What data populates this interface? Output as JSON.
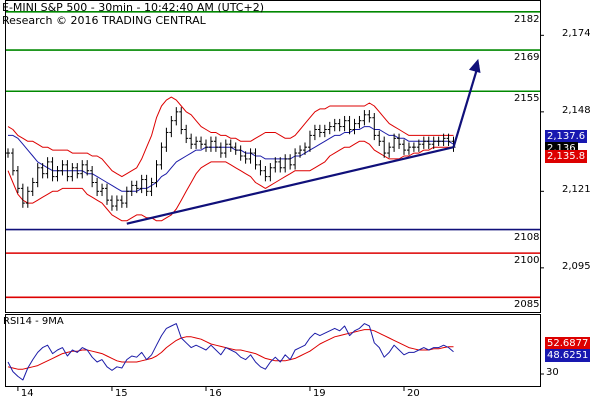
{
  "header": {
    "line1": "E-MINI S&P 500 - 30min - 10:42:40 AM (UTC+2)",
    "line2": "Research © 2016 TRADING CENTRAL"
  },
  "colors": {
    "price": "#000000",
    "bollinger": "#dd0000",
    "moving_average": "#1c1ca8",
    "trendline": "#10107a",
    "resistance": "#008800",
    "support_red": "#dd0000",
    "support_blue": "#10107a",
    "badge_blue": "#1818b0",
    "badge_red": "#dd0000",
    "badge_black": "#000000"
  },
  "chart_data": [
    {
      "type": "line",
      "title": "E-MINI S&P 500 - 30min",
      "ylim": [
        2080,
        2186
      ],
      "y_ticks": [
        {
          "value": 2174,
          "label": "2,174"
        },
        {
          "value": 2148,
          "label": "2,148"
        },
        {
          "value": 2121,
          "label": "2,121"
        },
        {
          "value": 2095,
          "label": "2,095"
        }
      ],
      "x_ticks": [
        {
          "index": 2,
          "label": "14"
        },
        {
          "index": 21,
          "label": "15"
        },
        {
          "index": 40,
          "label": "16"
        },
        {
          "index": 61,
          "label": "19"
        },
        {
          "index": 80,
          "label": "20"
        }
      ],
      "price": [
        2134,
        2128,
        2122,
        2117,
        2121,
        2124,
        2129,
        2127,
        2131,
        2126,
        2128,
        2130,
        2126,
        2129,
        2127,
        2130,
        2128,
        2124,
        2121,
        2122,
        2118,
        2116,
        2118,
        2117,
        2121,
        2123,
        2122,
        2125,
        2121,
        2124,
        2130,
        2136,
        2141,
        2145,
        2148,
        2142,
        2139,
        2137,
        2138,
        2137,
        2136,
        2138,
        2136,
        2134,
        2137,
        2136,
        2135,
        2133,
        2132,
        2134,
        2130,
        2128,
        2126,
        2129,
        2131,
        2129,
        2132,
        2130,
        2134,
        2135,
        2136,
        2140,
        2142,
        2141,
        2142,
        2143,
        2144,
        2143,
        2145,
        2142,
        2144,
        2145,
        2147,
        2146,
        2140,
        2138,
        2134,
        2136,
        2139,
        2137,
        2135,
        2136,
        2136,
        2137,
        2138,
        2137,
        2138,
        2138,
        2139,
        2138,
        2136
      ],
      "moving_average": [
        2140,
        2140,
        2139,
        2137,
        2135,
        2133,
        2131,
        2130,
        2129,
        2128,
        2128,
        2128,
        2128,
        2128,
        2128,
        2128,
        2127,
        2127,
        2126,
        2125,
        2124,
        2123,
        2122,
        2121,
        2121,
        2121,
        2121,
        2122,
        2122,
        2123,
        2124,
        2126,
        2127,
        2129,
        2131,
        2132,
        2133,
        2134,
        2135,
        2135,
        2136,
        2136,
        2136,
        2136,
        2136,
        2136,
        2135,
        2135,
        2134,
        2134,
        2133,
        2133,
        2132,
        2132,
        2132,
        2132,
        2132,
        2132,
        2133,
        2133,
        2134,
        2135,
        2136,
        2137,
        2138,
        2139,
        2140,
        2140,
        2141,
        2141,
        2142,
        2142,
        2143,
        2143,
        2142,
        2142,
        2141,
        2140,
        2140,
        2139,
        2139,
        2138,
        2138,
        2138,
        2138,
        2138,
        2138,
        2138,
        2138,
        2138,
        2137
      ],
      "bollinger_upper": [
        2143,
        2142,
        2140,
        2139,
        2138,
        2138,
        2137,
        2136,
        2136,
        2135,
        2135,
        2135,
        2135,
        2134,
        2134,
        2134,
        2134,
        2133,
        2133,
        2132,
        2130,
        2128,
        2127,
        2126,
        2127,
        2128,
        2129,
        2132,
        2136,
        2140,
        2146,
        2150,
        2152,
        2153,
        2152,
        2150,
        2148,
        2147,
        2145,
        2143,
        2142,
        2141,
        2141,
        2140,
        2140,
        2139,
        2139,
        2138,
        2138,
        2138,
        2139,
        2140,
        2141,
        2141,
        2141,
        2140,
        2139,
        2139,
        2140,
        2142,
        2144,
        2146,
        2148,
        2149,
        2149,
        2150,
        2150,
        2150,
        2150,
        2150,
        2150,
        2150,
        2150,
        2151,
        2150,
        2148,
        2146,
        2144,
        2143,
        2142,
        2141,
        2140,
        2140,
        2140,
        2140,
        2140,
        2140,
        2140,
        2140,
        2140,
        2140
      ],
      "bollinger_lower": [
        2128,
        2124,
        2120,
        2118,
        2117,
        2117,
        2118,
        2119,
        2120,
        2121,
        2121,
        2122,
        2122,
        2122,
        2122,
        2122,
        2120,
        2119,
        2118,
        2117,
        2115,
        2113,
        2112,
        2111,
        2111,
        2112,
        2113,
        2113,
        2112,
        2112,
        2111,
        2111,
        2112,
        2113,
        2115,
        2118,
        2121,
        2124,
        2127,
        2129,
        2130,
        2131,
        2131,
        2131,
        2131,
        2130,
        2129,
        2128,
        2127,
        2126,
        2124,
        2123,
        2122,
        2123,
        2124,
        2125,
        2126,
        2127,
        2128,
        2128,
        2128,
        2128,
        2129,
        2130,
        2131,
        2133,
        2134,
        2135,
        2136,
        2136,
        2137,
        2138,
        2138,
        2137,
        2135,
        2134,
        2133,
        2132,
        2132,
        2132,
        2133,
        2133,
        2134,
        2134,
        2135,
        2135,
        2136,
        2136,
        2136,
        2136,
        2136
      ],
      "trendline": {
        "from": {
          "index": 24,
          "value": 2110
        },
        "to": {
          "index": 90,
          "value": 2136
        }
      },
      "forecast_arrow": {
        "from": {
          "index": 90,
          "value": 2136
        },
        "to": {
          "index": 95,
          "value": 2166
        }
      },
      "levels": [
        {
          "value": 2182,
          "label": "2182",
          "color": "resistance"
        },
        {
          "value": 2169,
          "label": "2169",
          "color": "resistance"
        },
        {
          "value": 2155,
          "label": "2155",
          "color": "resistance"
        },
        {
          "value": 2108,
          "label": "2108",
          "color": "support_blue"
        },
        {
          "value": 2100,
          "label": "2100",
          "color": "support_red"
        },
        {
          "value": 2085,
          "label": "2085",
          "color": "support_red"
        }
      ],
      "badges": [
        {
          "value": 2137.6,
          "label": "2,137.6",
          "color": "badge_blue"
        },
        {
          "value": 2136,
          "label": "2,136",
          "color": "badge_black"
        },
        {
          "value": 2135.8,
          "label": "2,135.8",
          "color": "badge_red"
        }
      ]
    },
    {
      "type": "line",
      "title": "RSI14 - 9MA",
      "ylim": [
        20,
        80
      ],
      "y_ticks": [
        {
          "value": 30,
          "label": "30"
        }
      ],
      "rsi": [
        40,
        32,
        28,
        25,
        35,
        42,
        48,
        52,
        54,
        47,
        50,
        52,
        45,
        50,
        48,
        52,
        50,
        44,
        40,
        42,
        36,
        33,
        36,
        35,
        42,
        45,
        44,
        48,
        42,
        46,
        54,
        62,
        68,
        70,
        72,
        60,
        56,
        52,
        54,
        52,
        50,
        54,
        50,
        46,
        52,
        50,
        48,
        44,
        42,
        46,
        40,
        36,
        34,
        40,
        44,
        40,
        46,
        42,
        50,
        52,
        54,
        60,
        64,
        62,
        64,
        66,
        68,
        66,
        70,
        62,
        66,
        68,
        72,
        70,
        56,
        52,
        44,
        48,
        54,
        50,
        46,
        48,
        48,
        50,
        52,
        50,
        52,
        52,
        54,
        52,
        48.6
      ],
      "rsi_ma": [
        36,
        35,
        34,
        34,
        35,
        36,
        37,
        39,
        41,
        43,
        45,
        47,
        48,
        49,
        49,
        50,
        50,
        49,
        48,
        47,
        45,
        43,
        41,
        40,
        40,
        40,
        40,
        41,
        42,
        43,
        45,
        48,
        52,
        55,
        58,
        60,
        61,
        61,
        60,
        59,
        57,
        55,
        54,
        53,
        52,
        51,
        50,
        50,
        49,
        48,
        47,
        45,
        43,
        42,
        41,
        41,
        41,
        42,
        43,
        45,
        47,
        49,
        52,
        55,
        57,
        59,
        61,
        62,
        63,
        64,
        65,
        66,
        67,
        67,
        66,
        64,
        62,
        60,
        58,
        56,
        54,
        52,
        51,
        50,
        50,
        50,
        51,
        51,
        52,
        52.7,
        52.7
      ],
      "badges": [
        {
          "value": 52.6877,
          "label": "52.6877",
          "color": "badge_red"
        },
        {
          "value": 48.6251,
          "label": "48.6251",
          "color": "badge_blue"
        }
      ]
    }
  ]
}
